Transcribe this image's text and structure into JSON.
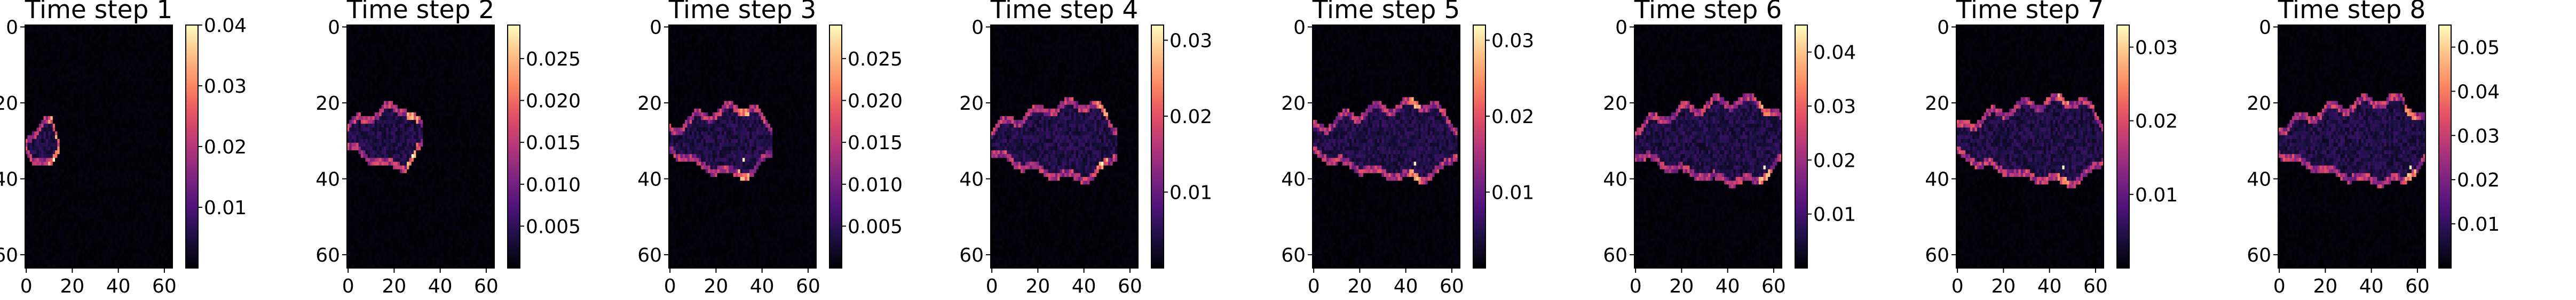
{
  "colormap": "magma",
  "colors": {
    "background": "#ffffff",
    "frame": "#000000",
    "heatmap_low": "#000004",
    "heatmap_high": "#fcfdbf"
  },
  "chart_data": [
    {
      "type": "heatmap",
      "title": "Time step 1",
      "grid_size": [
        64,
        64
      ],
      "xlim": [
        0,
        63
      ],
      "ylim": [
        63,
        0
      ],
      "x_ticks": [
        "0",
        "20",
        "40",
        "60"
      ],
      "y_ticks": [
        "0",
        "20",
        "40",
        "60"
      ],
      "colorbar": {
        "range": [
          0,
          0.04
        ],
        "ticks": [
          "0.04",
          "0.03",
          "0.02",
          "0.01"
        ]
      },
      "feature": {
        "center_row": 31,
        "x_start": 0,
        "x_end": 14,
        "tip_x": 13,
        "half_width": 6,
        "peak_x": 12,
        "peak_value": 0.04
      }
    },
    {
      "type": "heatmap",
      "title": "Time step 2",
      "grid_size": [
        64,
        64
      ],
      "xlim": [
        0,
        63
      ],
      "ylim": [
        63,
        0
      ],
      "x_ticks": [
        "0",
        "20",
        "40",
        "60"
      ],
      "y_ticks": [
        "0",
        "20",
        "40",
        "60"
      ],
      "colorbar": {
        "range": [
          0,
          0.029
        ],
        "ticks": [
          "0.025",
          "0.020",
          "0.015",
          "0.010",
          "0.005"
        ]
      },
      "feature": {
        "center_row": 29,
        "x_start": 0,
        "x_end": 32,
        "tip_x": 30,
        "half_width": 8,
        "peak_x": 28,
        "peak_value": 0.029
      }
    },
    {
      "type": "heatmap",
      "title": "Time step 3",
      "grid_size": [
        64,
        64
      ],
      "xlim": [
        0,
        63
      ],
      "ylim": [
        63,
        0
      ],
      "x_ticks": [
        "0",
        "20",
        "40",
        "60"
      ],
      "y_ticks": [
        "0",
        "20",
        "40",
        "60"
      ],
      "colorbar": {
        "range": [
          0,
          0.029
        ],
        "ticks": [
          "0.025",
          "0.020",
          "0.015",
          "0.010",
          "0.005"
        ]
      },
      "feature": {
        "center_row": 30,
        "x_start": 0,
        "x_end": 44,
        "tip_x": 42,
        "half_width": 9,
        "peak_x": 32,
        "peak_value": 0.029
      }
    },
    {
      "type": "heatmap",
      "title": "Time step 4",
      "grid_size": [
        64,
        64
      ],
      "xlim": [
        0,
        63
      ],
      "ylim": [
        63,
        0
      ],
      "x_ticks": [
        "0",
        "20",
        "40",
        "60"
      ],
      "y_ticks": [
        "0",
        "20",
        "40",
        "60"
      ],
      "colorbar": {
        "range": [
          0,
          0.032
        ],
        "ticks": [
          "0.03",
          "0.02",
          "0.01"
        ]
      },
      "feature": {
        "center_row": 30,
        "x_start": 0,
        "x_end": 54,
        "tip_x": 52,
        "half_width": 10,
        "peak_x": 48,
        "peak_value": 0.032
      }
    },
    {
      "type": "heatmap",
      "title": "Time step 5",
      "grid_size": [
        64,
        64
      ],
      "xlim": [
        0,
        63
      ],
      "ylim": [
        63,
        0
      ],
      "x_ticks": [
        "0",
        "20",
        "40",
        "60"
      ],
      "y_ticks": [
        "0",
        "20",
        "40",
        "60"
      ],
      "colorbar": {
        "range": [
          0,
          0.032
        ],
        "ticks": [
          "0.03",
          "0.02",
          "0.01"
        ]
      },
      "feature": {
        "center_row": 30,
        "x_start": 0,
        "x_end": 62,
        "tip_x": 60,
        "half_width": 10,
        "peak_x": 44,
        "peak_value": 0.032
      }
    },
    {
      "type": "heatmap",
      "title": "Time step 6",
      "grid_size": [
        64,
        64
      ],
      "xlim": [
        0,
        63
      ],
      "ylim": [
        63,
        0
      ],
      "x_ticks": [
        "0",
        "20",
        "40",
        "60"
      ],
      "y_ticks": [
        "0",
        "20",
        "40",
        "60"
      ],
      "colorbar": {
        "range": [
          0,
          0.045
        ],
        "ticks": [
          "0.04",
          "0.03",
          "0.02",
          "0.01"
        ]
      },
      "feature": {
        "center_row": 30,
        "x_start": 0,
        "x_end": 63,
        "tip_x": 63,
        "half_width": 11,
        "peak_x": 56,
        "peak_value": 0.045
      }
    },
    {
      "type": "heatmap",
      "title": "Time step 7",
      "grid_size": [
        64,
        64
      ],
      "xlim": [
        0,
        63
      ],
      "ylim": [
        63,
        0
      ],
      "x_ticks": [
        "0",
        "20",
        "40",
        "60"
      ],
      "y_ticks": [
        "0",
        "20",
        "40",
        "60"
      ],
      "colorbar": {
        "range": [
          0,
          0.033
        ],
        "ticks": [
          "0.03",
          "0.02",
          "0.01"
        ]
      },
      "feature": {
        "center_row": 30,
        "x_start": 0,
        "x_end": 63,
        "tip_x": 63,
        "half_width": 11,
        "peak_x": 46,
        "peak_value": 0.033
      }
    },
    {
      "type": "heatmap",
      "title": "Time step 8",
      "grid_size": [
        64,
        64
      ],
      "xlim": [
        0,
        63
      ],
      "ylim": [
        63,
        0
      ],
      "x_ticks": [
        "0",
        "20",
        "40",
        "60"
      ],
      "y_ticks": [
        "0",
        "20",
        "40",
        "60"
      ],
      "colorbar": {
        "range": [
          0,
          0.055
        ],
        "ticks": [
          "0.05",
          "0.04",
          "0.03",
          "0.02",
          "0.01"
        ]
      },
      "feature": {
        "center_row": 30,
        "x_start": 0,
        "x_end": 63,
        "tip_x": 63,
        "half_width": 11,
        "peak_x": 57,
        "peak_value": 0.055
      }
    }
  ]
}
